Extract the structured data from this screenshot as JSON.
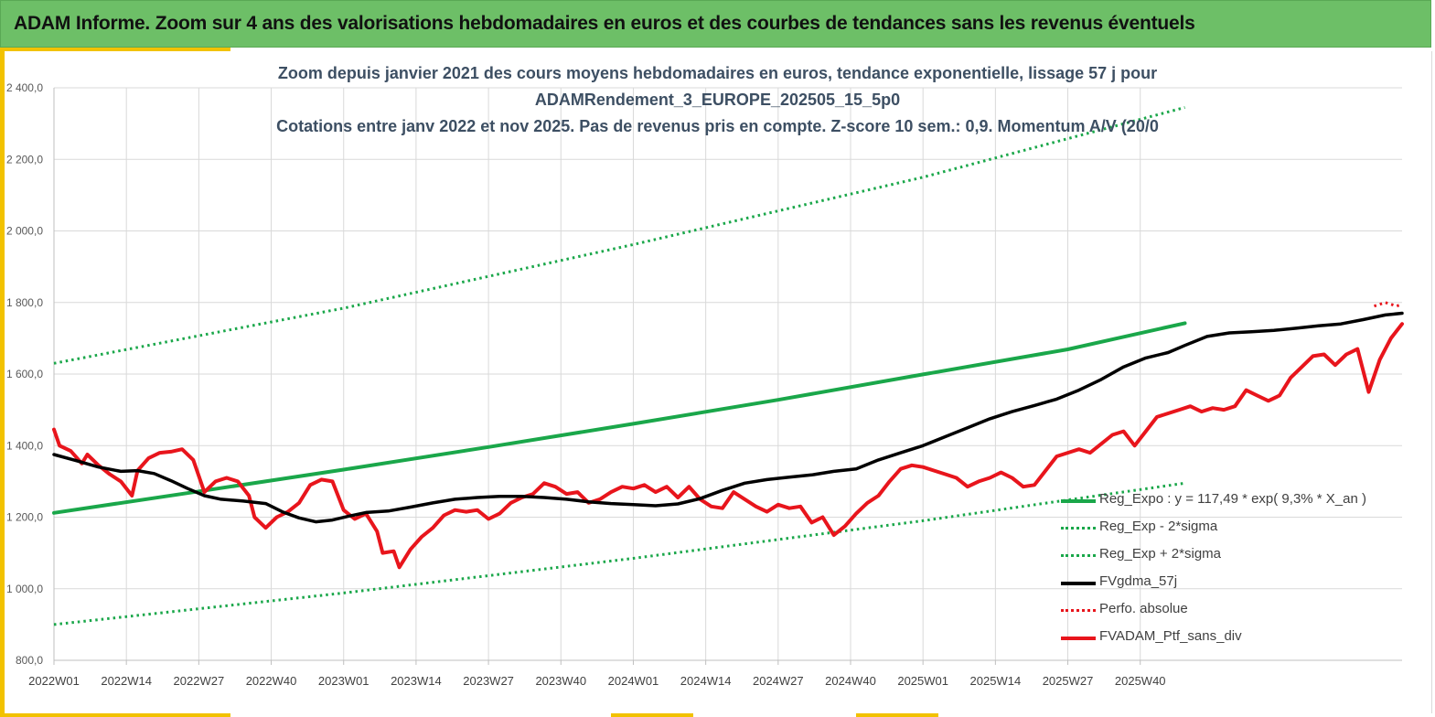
{
  "banner": {
    "title": "ADAM Informe. Zoom sur 4 ans des valorisations hebdomadaires en euros et des courbes de tendances sans les revenus éventuels"
  },
  "colors": {
    "banner_green": "#6dbf67",
    "accent_yellow": "#f2c200",
    "regression_green": "#1aa74a",
    "fvgdma_black": "#000000",
    "fvadam_red": "#e8151c"
  },
  "chart_data": {
    "type": "line",
    "title_lines": [
      "Zoom depuis janvier 2021 des cours moyens hebdomadaires  en euros, tendance exponentielle, lissage 57 j pour",
      "ADAMRendement_3_EUROPE_202505_15_5p0",
      "Cotations  entre janv 2022 et nov 2025. Pas de revenus pris en compte. Z-score 10 sem.: 0,9. Momentum A/V (20/0"
    ],
    "ylim": [
      800,
      2400
    ],
    "y_ticks": [
      "800,0",
      "1 000,0",
      "1 200,0",
      "1 400,0",
      "1 600,0",
      "1 800,0",
      "2 000,0",
      "2 200,0",
      "2 400,0"
    ],
    "x_ticks": [
      "2022W01",
      "2022W14",
      "2022W27",
      "2022W40",
      "2023W01",
      "2023W14",
      "2023W27",
      "2023W40",
      "2024W01",
      "2024W14",
      "2024W27",
      "2024W40",
      "2025W01",
      "2025W14",
      "2025W27",
      "2025W40"
    ],
    "x_range_weeks": [
      0,
      203
    ],
    "grid": true,
    "legend_position": "bottom-right",
    "series": [
      {
        "name": "Reg_Expo : y = 117,49 * exp( 9,3% * X_an )",
        "style": "solid",
        "color": "#1aa74a",
        "points": [
          [
            0,
            1212
          ],
          [
            26,
            1272
          ],
          [
            52,
            1333
          ],
          [
            78,
            1396
          ],
          [
            104,
            1461
          ],
          [
            130,
            1528
          ],
          [
            156,
            1599
          ],
          [
            182,
            1669
          ],
          [
            203,
            1742
          ]
        ]
      },
      {
        "name": "Reg_Exp - 2*sigma",
        "style": "dotted",
        "color": "#1aa74a",
        "points": [
          [
            0,
            900
          ],
          [
            52,
            988
          ],
          [
            104,
            1085
          ],
          [
            156,
            1190
          ],
          [
            203,
            1295
          ]
        ]
      },
      {
        "name": "Reg_Exp + 2*sigma",
        "style": "dotted",
        "color": "#1aa74a",
        "points": [
          [
            0,
            1630
          ],
          [
            52,
            1784
          ],
          [
            104,
            1962
          ],
          [
            156,
            2150
          ],
          [
            203,
            2345
          ]
        ]
      },
      {
        "name": "FVgdma_57j",
        "style": "solid",
        "color": "#000000",
        "points": [
          [
            0,
            1375
          ],
          [
            4,
            1358
          ],
          [
            8,
            1340
          ],
          [
            12,
            1328
          ],
          [
            15,
            1330
          ],
          [
            18,
            1322
          ],
          [
            21,
            1302
          ],
          [
            24,
            1280
          ],
          [
            27,
            1260
          ],
          [
            30,
            1250
          ],
          [
            34,
            1245
          ],
          [
            38,
            1238
          ],
          [
            41,
            1215
          ],
          [
            44,
            1198
          ],
          [
            47,
            1187
          ],
          [
            50,
            1192
          ],
          [
            53,
            1203
          ],
          [
            56,
            1213
          ],
          [
            60,
            1217
          ],
          [
            64,
            1228
          ],
          [
            68,
            1240
          ],
          [
            72,
            1250
          ],
          [
            76,
            1255
          ],
          [
            80,
            1258
          ],
          [
            84,
            1258
          ],
          [
            88,
            1255
          ],
          [
            92,
            1250
          ],
          [
            96,
            1243
          ],
          [
            100,
            1238
          ],
          [
            104,
            1235
          ],
          [
            108,
            1232
          ],
          [
            112,
            1237
          ],
          [
            116,
            1252
          ],
          [
            120,
            1275
          ],
          [
            124,
            1295
          ],
          [
            128,
            1305
          ],
          [
            132,
            1312
          ],
          [
            136,
            1318
          ],
          [
            140,
            1328
          ],
          [
            144,
            1335
          ],
          [
            148,
            1360
          ],
          [
            152,
            1380
          ],
          [
            156,
            1400
          ],
          [
            160,
            1425
          ],
          [
            164,
            1450
          ],
          [
            168,
            1475
          ],
          [
            172,
            1495
          ],
          [
            176,
            1512
          ],
          [
            180,
            1530
          ],
          [
            184,
            1555
          ],
          [
            188,
            1585
          ],
          [
            192,
            1620
          ],
          [
            196,
            1645
          ],
          [
            200,
            1660
          ],
          [
            203,
            1680
          ],
          [
            207,
            1705
          ],
          [
            211,
            1715
          ],
          [
            215,
            1718
          ],
          [
            219,
            1722
          ],
          [
            223,
            1728
          ],
          [
            227,
            1735
          ],
          [
            231,
            1740
          ],
          [
            235,
            1752
          ],
          [
            239,
            1765
          ],
          [
            242,
            1770
          ]
        ]
      },
      {
        "name": "Perfo. absolue",
        "style": "dotted",
        "color": "#e8151c",
        "points": [
          [
            237,
            1790
          ],
          [
            239,
            1800
          ],
          [
            241,
            1790
          ],
          [
            242,
            1795
          ]
        ]
      },
      {
        "name": "FVADAM_Ptf_sans_div",
        "style": "solid",
        "color": "#e8151c",
        "points": [
          [
            0,
            1445
          ],
          [
            1,
            1400
          ],
          [
            3,
            1385
          ],
          [
            5,
            1350
          ],
          [
            6,
            1375
          ],
          [
            8,
            1345
          ],
          [
            10,
            1320
          ],
          [
            12,
            1300
          ],
          [
            14,
            1260
          ],
          [
            15,
            1330
          ],
          [
            17,
            1365
          ],
          [
            19,
            1380
          ],
          [
            21,
            1383
          ],
          [
            23,
            1390
          ],
          [
            25,
            1360
          ],
          [
            27,
            1270
          ],
          [
            29,
            1300
          ],
          [
            31,
            1310
          ],
          [
            33,
            1300
          ],
          [
            35,
            1260
          ],
          [
            36,
            1200
          ],
          [
            38,
            1170
          ],
          [
            40,
            1200
          ],
          [
            42,
            1215
          ],
          [
            44,
            1240
          ],
          [
            46,
            1290
          ],
          [
            48,
            1305
          ],
          [
            50,
            1300
          ],
          [
            52,
            1220
          ],
          [
            54,
            1195
          ],
          [
            56,
            1210
          ],
          [
            58,
            1160
          ],
          [
            59,
            1100
          ],
          [
            61,
            1105
          ],
          [
            62,
            1060
          ],
          [
            64,
            1110
          ],
          [
            66,
            1145
          ],
          [
            68,
            1170
          ],
          [
            70,
            1205
          ],
          [
            72,
            1220
          ],
          [
            74,
            1215
          ],
          [
            76,
            1220
          ],
          [
            78,
            1195
          ],
          [
            80,
            1210
          ],
          [
            82,
            1240
          ],
          [
            84,
            1255
          ],
          [
            86,
            1265
          ],
          [
            88,
            1295
          ],
          [
            90,
            1285
          ],
          [
            92,
            1265
          ],
          [
            94,
            1270
          ],
          [
            96,
            1240
          ],
          [
            98,
            1250
          ],
          [
            100,
            1270
          ],
          [
            102,
            1285
          ],
          [
            104,
            1280
          ],
          [
            106,
            1290
          ],
          [
            108,
            1270
          ],
          [
            110,
            1285
          ],
          [
            112,
            1255
          ],
          [
            114,
            1285
          ],
          [
            116,
            1250
          ],
          [
            118,
            1230
          ],
          [
            120,
            1225
          ],
          [
            122,
            1270
          ],
          [
            124,
            1250
          ],
          [
            126,
            1230
          ],
          [
            128,
            1215
          ],
          [
            130,
            1235
          ],
          [
            132,
            1225
          ],
          [
            134,
            1230
          ],
          [
            136,
            1185
          ],
          [
            138,
            1200
          ],
          [
            140,
            1150
          ],
          [
            142,
            1175
          ],
          [
            144,
            1210
          ],
          [
            146,
            1240
          ],
          [
            148,
            1260
          ],
          [
            150,
            1300
          ],
          [
            152,
            1335
          ],
          [
            154,
            1345
          ],
          [
            156,
            1340
          ],
          [
            158,
            1330
          ],
          [
            160,
            1320
          ],
          [
            162,
            1310
          ],
          [
            164,
            1285
          ],
          [
            166,
            1300
          ],
          [
            168,
            1310
          ],
          [
            170,
            1325
          ],
          [
            172,
            1310
          ],
          [
            174,
            1285
          ],
          [
            176,
            1290
          ],
          [
            178,
            1330
          ],
          [
            180,
            1370
          ],
          [
            182,
            1380
          ],
          [
            184,
            1390
          ],
          [
            186,
            1380
          ],
          [
            188,
            1405
          ],
          [
            190,
            1430
          ],
          [
            192,
            1440
          ],
          [
            194,
            1400
          ],
          [
            196,
            1440
          ],
          [
            198,
            1480
          ],
          [
            200,
            1490
          ],
          [
            202,
            1500
          ],
          [
            204,
            1510
          ],
          [
            206,
            1495
          ],
          [
            208,
            1505
          ],
          [
            210,
            1500
          ],
          [
            212,
            1510
          ],
          [
            214,
            1555
          ],
          [
            216,
            1540
          ],
          [
            218,
            1525
          ],
          [
            220,
            1540
          ],
          [
            222,
            1590
          ],
          [
            224,
            1620
          ],
          [
            226,
            1650
          ],
          [
            228,
            1655
          ],
          [
            230,
            1625
          ],
          [
            232,
            1655
          ],
          [
            234,
            1670
          ],
          [
            236,
            1550
          ],
          [
            238,
            1640
          ],
          [
            240,
            1700
          ],
          [
            242,
            1740
          ]
        ]
      }
    ]
  }
}
